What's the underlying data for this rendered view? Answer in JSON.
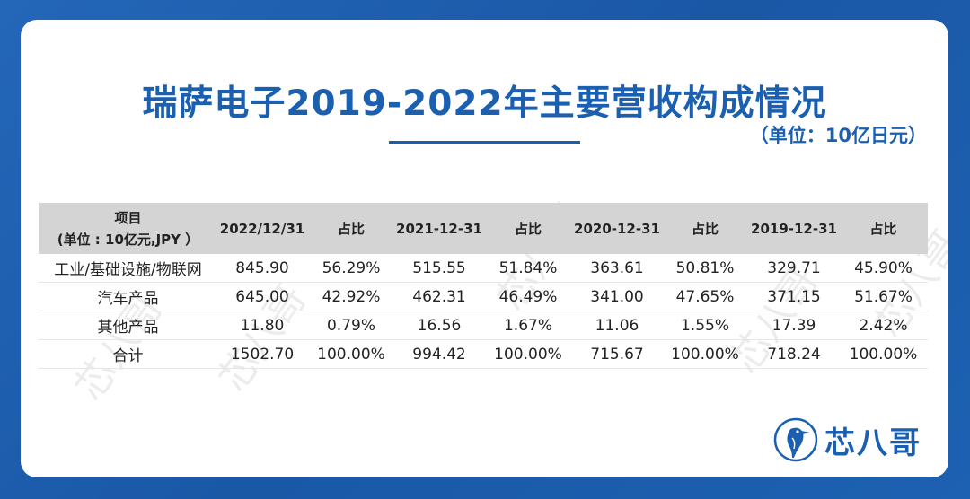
{
  "title": "瑞萨电子2019-2022年主要营收构成情况",
  "unit_note": "（单位：10亿日元）",
  "table": {
    "header_item_line1": "项目",
    "header_item_line2": "(单位 : 10亿元,JPY ）",
    "headers": [
      "2022/12/31",
      "占比",
      "2021-12-31",
      "占比",
      "2020-12-31",
      "占比",
      "2019-12-31",
      "占比"
    ],
    "rows": [
      {
        "name": "工业/基础设施/物联网",
        "cells": [
          "845.90",
          "56.29%",
          "515.55",
          "51.84%",
          "363.61",
          "50.81%",
          "329.71",
          "45.90%"
        ]
      },
      {
        "name": "汽车产品",
        "cells": [
          "645.00",
          "42.92%",
          "462.31",
          "46.49%",
          "341.00",
          "47.65%",
          "371.15",
          "51.67%"
        ]
      },
      {
        "name": "其他产品",
        "cells": [
          "11.80",
          "0.79%",
          "16.56",
          "1.67%",
          "11.06",
          "1.55%",
          "17.39",
          "2.42%"
        ]
      },
      {
        "name": "合计",
        "cells": [
          "1502.70",
          "100.00%",
          "994.42",
          "100.00%",
          "715.67",
          "100.00%",
          "718.24",
          "100.00%"
        ]
      }
    ]
  },
  "watermark_text": "芯八哥",
  "logo": {
    "text": "芯八哥",
    "icon": "kingfisher-bird-icon",
    "color": "#1a5fb0"
  },
  "colors": {
    "accent": "#1a5fb0",
    "frame": "#1c5fb0",
    "header_bg": "#d4d4d4"
  }
}
